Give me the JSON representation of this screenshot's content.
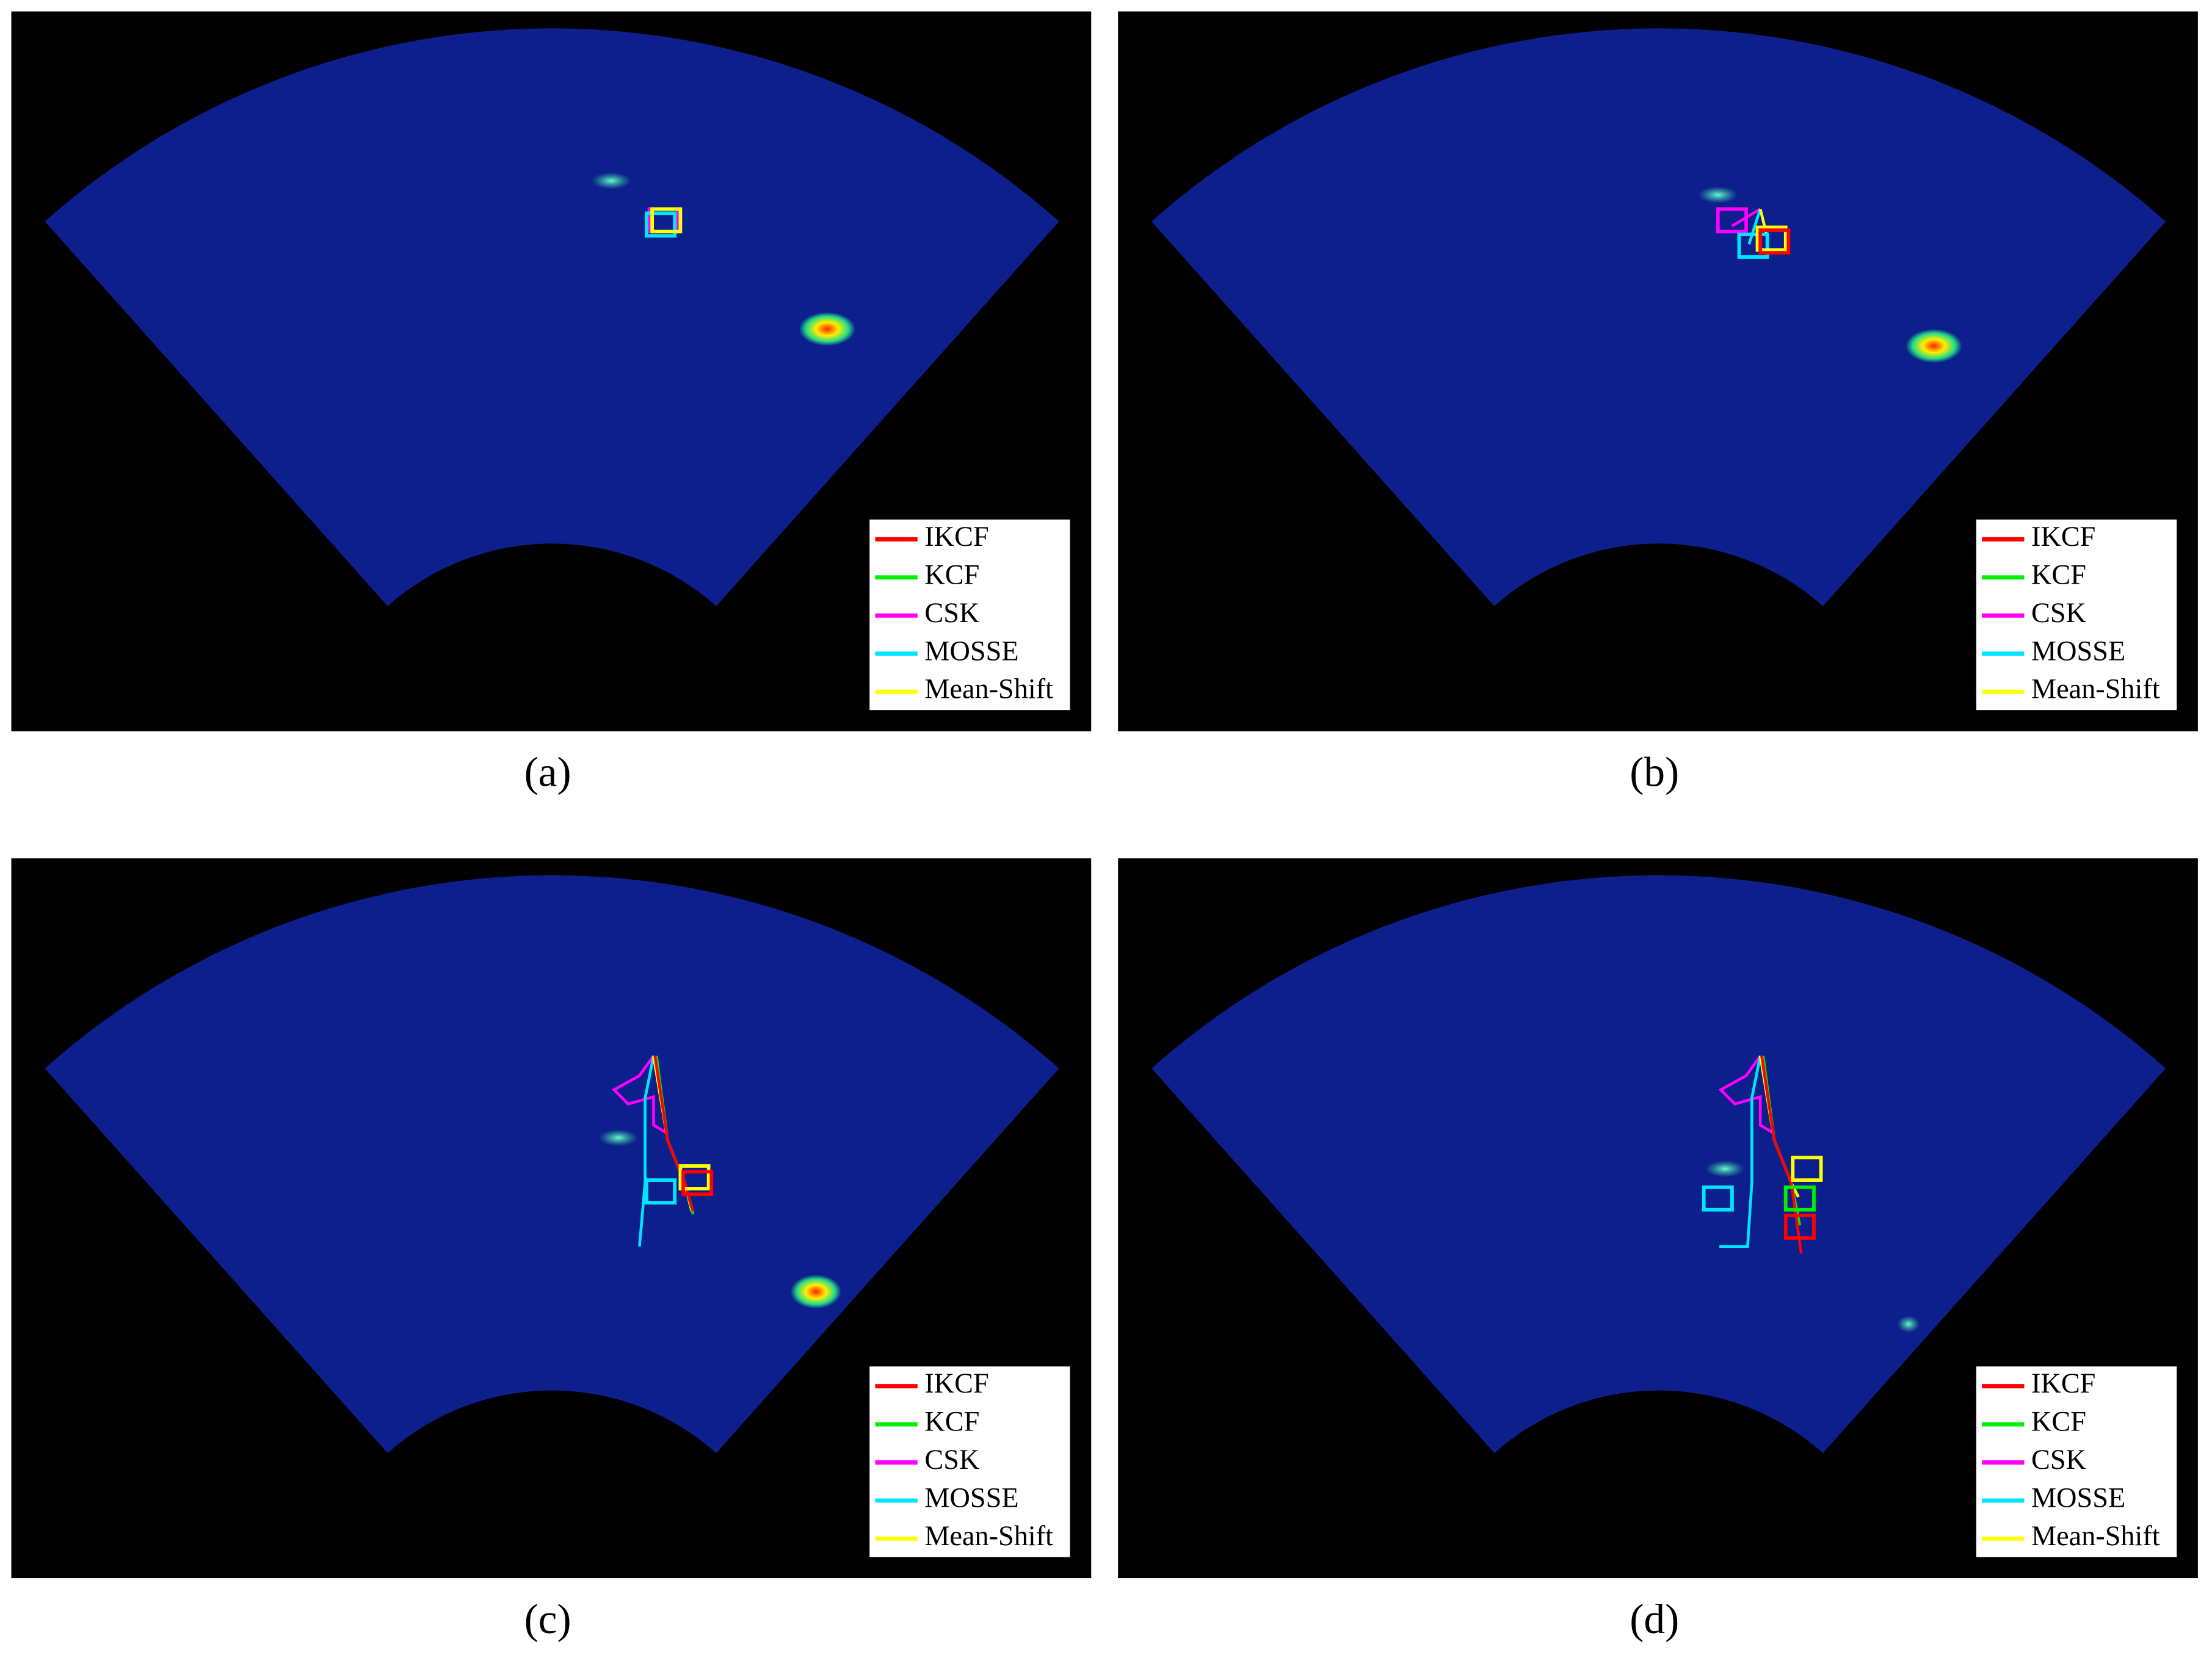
{
  "panels": [
    {
      "caption": "(a)",
      "legend": [
        {
          "label": "IKCF",
          "color": "#ff0000"
        },
        {
          "label": "KCF",
          "color": "#00ee00"
        },
        {
          "label": "CSK",
          "color": "#ff00ff"
        },
        {
          "label": "MOSSE",
          "color": "#00e5ff"
        },
        {
          "label": "Mean-Shift",
          "color": "#ffff00"
        }
      ]
    },
    {
      "caption": "(b)",
      "legend": [
        {
          "label": "IKCF",
          "color": "#ff0000"
        },
        {
          "label": "KCF",
          "color": "#00ee00"
        },
        {
          "label": "CSK",
          "color": "#ff00ff"
        },
        {
          "label": "MOSSE",
          "color": "#00e5ff"
        },
        {
          "label": "Mean-Shift",
          "color": "#ffff00"
        }
      ]
    },
    {
      "caption": "(c)",
      "legend": [
        {
          "label": "IKCF",
          "color": "#ff0000"
        },
        {
          "label": "KCF",
          "color": "#00ee00"
        },
        {
          "label": "CSK",
          "color": "#ff00ff"
        },
        {
          "label": "MOSSE",
          "color": "#00e5ff"
        },
        {
          "label": "Mean-Shift",
          "color": "#ffff00"
        }
      ]
    },
    {
      "caption": "(d)",
      "legend": [
        {
          "label": "IKCF",
          "color": "#ff0000"
        },
        {
          "label": "KCF",
          "color": "#00ee00"
        },
        {
          "label": "CSK",
          "color": "#ff00ff"
        },
        {
          "label": "MOSSE",
          "color": "#00e5ff"
        },
        {
          "label": "Mean-Shift",
          "color": "#ffff00"
        }
      ]
    }
  ]
}
